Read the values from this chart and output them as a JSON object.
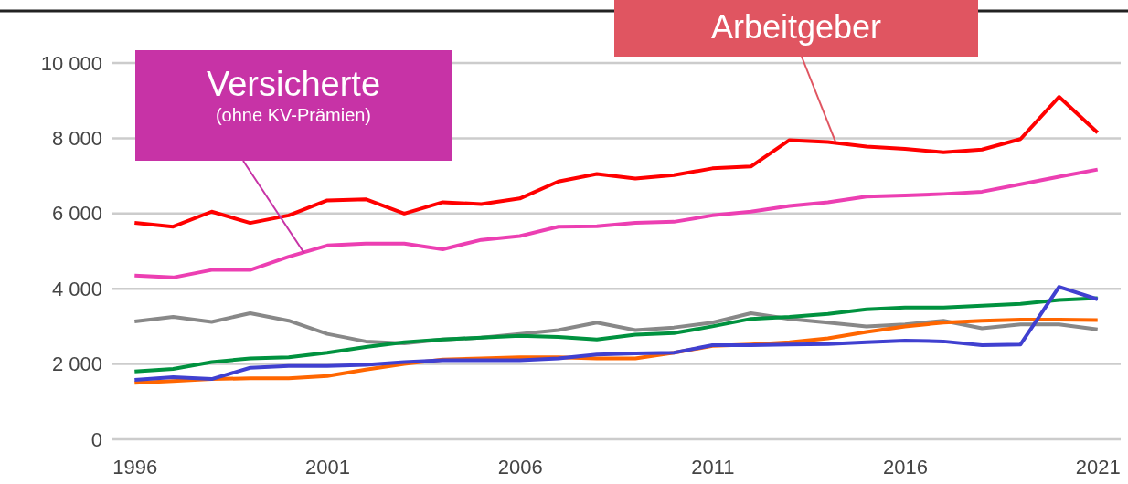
{
  "chart_data": {
    "type": "line",
    "x": [
      1996,
      1997,
      1998,
      1999,
      2000,
      2001,
      2002,
      2003,
      2004,
      2005,
      2006,
      2007,
      2008,
      2009,
      2010,
      2011,
      2012,
      2013,
      2014,
      2015,
      2016,
      2017,
      2018,
      2019,
      2020,
      2021
    ],
    "xlim": [
      1995.4,
      2021.6
    ],
    "xticks": [
      1996,
      2001,
      2006,
      2011,
      2016,
      2021
    ],
    "ylim": [
      0,
      10000
    ],
    "yticks": [
      0,
      {
        "value": 2000,
        "label": "2 000"
      },
      {
        "value": 4000,
        "label": "4 000"
      },
      {
        "value": 6000,
        "label": "6 000"
      },
      {
        "value": 8000,
        "label": "8 000"
      },
      {
        "value": 10000,
        "label": "10 000"
      }
    ],
    "grid": "y",
    "marker": "none",
    "line_style": "solid",
    "series": [
      {
        "color": "#ff0000",
        "values": [
          5750,
          5650,
          6050,
          5750,
          5950,
          6350,
          6380,
          6000,
          6300,
          6250,
          6400,
          6850,
          7050,
          6930,
          7020,
          7200,
          7250,
          7950,
          7900,
          7780,
          7720,
          7630,
          7700,
          7980,
          9100,
          8150
        ]
      },
      {
        "color": "#ec3fb2",
        "values": [
          4350,
          4300,
          4500,
          4500,
          4850,
          5150,
          5200,
          5200,
          5050,
          5300,
          5400,
          5650,
          5660,
          5750,
          5780,
          5950,
          6050,
          6200,
          6300,
          6450,
          6480,
          6520,
          6580,
          6780,
          6980,
          7170
        ]
      },
      {
        "color": "#888888",
        "values": [
          3130,
          3250,
          3120,
          3350,
          3150,
          2800,
          2600,
          2550,
          2650,
          2700,
          2800,
          2900,
          3100,
          2900,
          2970,
          3100,
          3350,
          3200,
          3100,
          3000,
          3050,
          3150,
          2950,
          3050,
          3050,
          2920
        ]
      },
      {
        "color": "#00923f",
        "values": [
          1800,
          1870,
          2050,
          2150,
          2180,
          2300,
          2450,
          2580,
          2650,
          2700,
          2750,
          2720,
          2650,
          2780,
          2820,
          3000,
          3200,
          3250,
          3330,
          3450,
          3500,
          3500,
          3550,
          3600,
          3700,
          3750
        ]
      },
      {
        "color": "#ff6600",
        "values": [
          1500,
          1550,
          1600,
          1620,
          1620,
          1680,
          1850,
          2000,
          2120,
          2150,
          2180,
          2180,
          2150,
          2150,
          2300,
          2480,
          2520,
          2580,
          2680,
          2850,
          3000,
          3100,
          3150,
          3180,
          3180,
          3170
        ]
      },
      {
        "color": "#4040d0",
        "values": [
          1580,
          1650,
          1600,
          1900,
          1950,
          1950,
          1980,
          2050,
          2100,
          2100,
          2100,
          2150,
          2250,
          2280,
          2300,
          2500,
          2500,
          2520,
          2530,
          2580,
          2620,
          2600,
          2500,
          2520,
          4050,
          3720
        ]
      }
    ],
    "annotations": [
      {
        "text": "Versicherte\n(ohne KV-Prämien)",
        "x": 2000.4,
        "y": 4950
      },
      {
        "text": "Arbeitgeber",
        "x": 2014.2,
        "y": 7900
      }
    ]
  }
}
